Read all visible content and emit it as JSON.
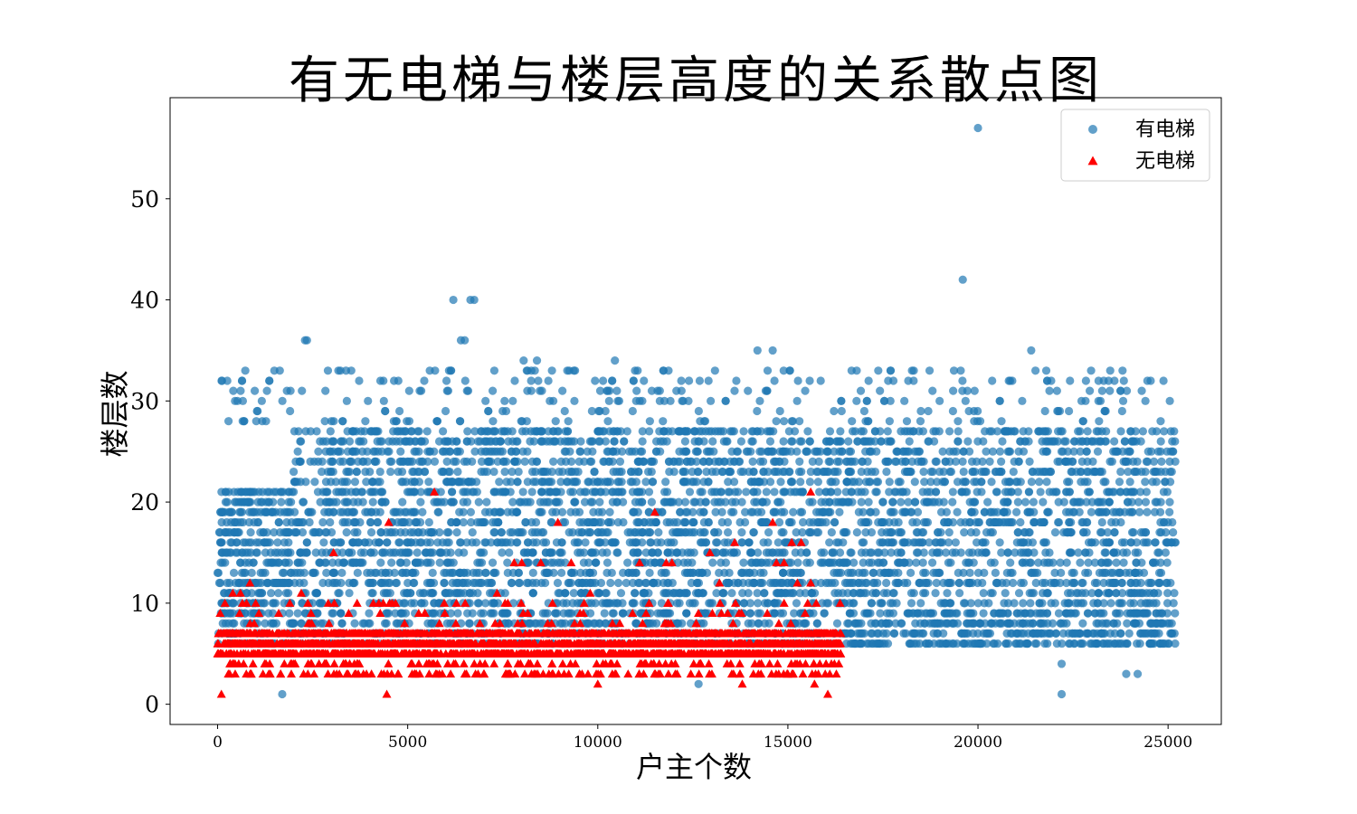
{
  "chart_data": {
    "type": "scatter",
    "title": "有无电梯与楼层高度的关系散点图",
    "xlabel": "户主个数",
    "ylabel": "楼层数",
    "xlim": [
      -1250,
      26400
    ],
    "ylim": [
      -2,
      60
    ],
    "xticks": [
      0,
      5000,
      10000,
      15000,
      20000,
      25000
    ],
    "yticks": [
      0,
      10,
      20,
      30,
      40,
      50
    ],
    "grid": false,
    "legend_position": "top-right",
    "series": [
      {
        "name": "有电梯",
        "marker": "circle",
        "color": "#1f77b4",
        "alpha": 0.7,
        "x_range": [
          0,
          25200
        ],
        "y_range": [
          1,
          57
        ],
        "dense_band": [
          6,
          27
        ],
        "notable_points": [
          {
            "x": 20000,
            "y": 57
          },
          {
            "x": 19600,
            "y": 42
          },
          {
            "x": 6200,
            "y": 40
          },
          {
            "x": 6650,
            "y": 40
          },
          {
            "x": 6750,
            "y": 40
          },
          {
            "x": 2300,
            "y": 36
          },
          {
            "x": 2350,
            "y": 36
          },
          {
            "x": 6400,
            "y": 36
          },
          {
            "x": 6500,
            "y": 36
          },
          {
            "x": 14200,
            "y": 35
          },
          {
            "x": 14600,
            "y": 35
          },
          {
            "x": 21400,
            "y": 35
          },
          {
            "x": 10450,
            "y": 34
          },
          {
            "x": 8050,
            "y": 34
          },
          {
            "x": 8400,
            "y": 34
          },
          {
            "x": 22200,
            "y": 1
          },
          {
            "x": 1700,
            "y": 1
          },
          {
            "x": 23900,
            "y": 3
          },
          {
            "x": 24200,
            "y": 3
          },
          {
            "x": 12650,
            "y": 2
          },
          {
            "x": 22200,
            "y": 4
          }
        ]
      },
      {
        "name": "无电梯",
        "marker": "triangle",
        "color": "#ff0000",
        "x_range": [
          0,
          16400
        ],
        "y_range": [
          1,
          21
        ],
        "dense_band": [
          2,
          7
        ],
        "notable_points": [
          {
            "x": 5700,
            "y": 21
          },
          {
            "x": 15600,
            "y": 21
          },
          {
            "x": 11500,
            "y": 19
          },
          {
            "x": 4500,
            "y": 18
          },
          {
            "x": 8950,
            "y": 18
          },
          {
            "x": 14600,
            "y": 18
          },
          {
            "x": 13600,
            "y": 16
          },
          {
            "x": 15100,
            "y": 16
          },
          {
            "x": 15350,
            "y": 16
          },
          {
            "x": 3050,
            "y": 15
          },
          {
            "x": 12950,
            "y": 15
          },
          {
            "x": 7800,
            "y": 14
          },
          {
            "x": 8000,
            "y": 14
          },
          {
            "x": 8500,
            "y": 14
          },
          {
            "x": 9300,
            "y": 14
          },
          {
            "x": 11100,
            "y": 14
          },
          {
            "x": 11800,
            "y": 14
          },
          {
            "x": 11950,
            "y": 14
          },
          {
            "x": 14700,
            "y": 14
          },
          {
            "x": 14900,
            "y": 14
          },
          {
            "x": 850,
            "y": 12
          },
          {
            "x": 13200,
            "y": 12
          },
          {
            "x": 15250,
            "y": 12
          },
          {
            "x": 15600,
            "y": 12
          },
          {
            "x": 400,
            "y": 11
          },
          {
            "x": 600,
            "y": 11
          },
          {
            "x": 2200,
            "y": 11
          },
          {
            "x": 7350,
            "y": 11
          },
          {
            "x": 9800,
            "y": 11
          },
          {
            "x": 1900,
            "y": 10
          },
          {
            "x": 11350,
            "y": 10
          },
          {
            "x": 14900,
            "y": 10
          },
          {
            "x": 100,
            "y": 1
          },
          {
            "x": 4450,
            "y": 1
          },
          {
            "x": 16050,
            "y": 1
          },
          {
            "x": 10000,
            "y": 2
          },
          {
            "x": 13800,
            "y": 2
          },
          {
            "x": 15700,
            "y": 2
          }
        ]
      }
    ]
  }
}
